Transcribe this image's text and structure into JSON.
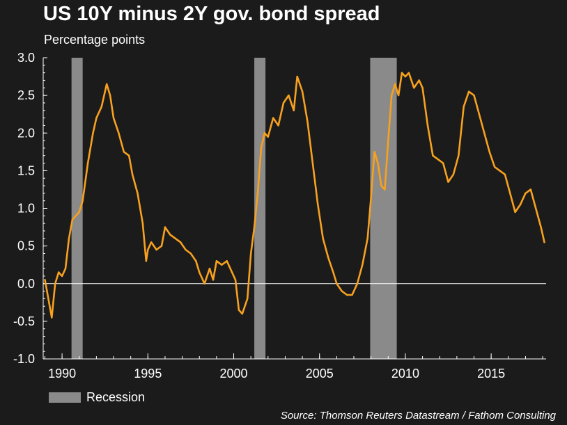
{
  "chart_data": {
    "type": "line",
    "title": "US 10Y minus 2Y gov. bond spread",
    "subtitle": "Percentage points",
    "xlabel": "",
    "ylabel": "Percentage points",
    "xlim": [
      1988.9,
      2018.2
    ],
    "ylim": [
      -1.0,
      3.0
    ],
    "y_ticks": [
      -1.0,
      -0.5,
      0.0,
      0.5,
      1.0,
      1.5,
      2.0,
      2.5,
      3.0
    ],
    "y_tick_labels": [
      "-1.0",
      "-0.5",
      "0.0",
      "0.5",
      "1.0",
      "1.5",
      "2.0",
      "2.5",
      "3.0"
    ],
    "x_ticks": [
      1990,
      1995,
      2000,
      2005,
      2010,
      2015
    ],
    "x_tick_labels": [
      "1990",
      "1995",
      "2000",
      "2005",
      "2010",
      "2015"
    ],
    "colors": {
      "series": "#f7a11f",
      "recession": "#8a8a8a",
      "zero_line": "#ffffff",
      "background": "#1b1b1b"
    },
    "recessions": [
      {
        "start": 1990.55,
        "end": 1991.2
      },
      {
        "start": 2001.2,
        "end": 2001.85
      },
      {
        "start": 2007.95,
        "end": 2009.5
      }
    ],
    "series": [
      {
        "name": "US 10Y minus 2Y spread",
        "x": [
          1989.0,
          1989.2,
          1989.4,
          1989.6,
          1989.8,
          1990.0,
          1990.2,
          1990.4,
          1990.6,
          1990.8,
          1991.0,
          1991.2,
          1991.5,
          1991.8,
          1992.0,
          1992.3,
          1992.6,
          1992.8,
          1993.0,
          1993.3,
          1993.6,
          1993.9,
          1994.1,
          1994.4,
          1994.7,
          1994.9,
          1995.0,
          1995.2,
          1995.5,
          1995.8,
          1996.0,
          1996.3,
          1996.6,
          1996.9,
          1997.2,
          1997.5,
          1997.8,
          1998.0,
          1998.3,
          1998.6,
          1998.8,
          1999.0,
          1999.3,
          1999.6,
          1999.9,
          2000.1,
          2000.3,
          2000.5,
          2000.8,
          2001.0,
          2001.2,
          2001.4,
          2001.6,
          2001.8,
          2002.0,
          2002.3,
          2002.6,
          2002.9,
          2003.2,
          2003.5,
          2003.7,
          2004.0,
          2004.3,
          2004.6,
          2004.9,
          2005.2,
          2005.5,
          2005.8,
          2006.0,
          2006.3,
          2006.6,
          2006.9,
          2007.2,
          2007.5,
          2007.8,
          2008.0,
          2008.2,
          2008.4,
          2008.6,
          2008.8,
          2009.0,
          2009.2,
          2009.4,
          2009.6,
          2009.8,
          2010.0,
          2010.2,
          2010.5,
          2010.8,
          2011.0,
          2011.3,
          2011.6,
          2011.9,
          2012.2,
          2012.5,
          2012.8,
          2013.1,
          2013.4,
          2013.7,
          2014.0,
          2014.3,
          2014.6,
          2014.9,
          2015.2,
          2015.5,
          2015.8,
          2016.1,
          2016.4,
          2016.7,
          2017.0,
          2017.3,
          2017.6,
          2017.9,
          2018.1
        ],
        "values": [
          0.05,
          -0.2,
          -0.45,
          0.0,
          0.15,
          0.1,
          0.2,
          0.6,
          0.85,
          0.9,
          0.95,
          1.1,
          1.6,
          2.0,
          2.2,
          2.35,
          2.65,
          2.5,
          2.2,
          2.0,
          1.75,
          1.7,
          1.45,
          1.2,
          0.8,
          0.3,
          0.45,
          0.55,
          0.45,
          0.5,
          0.75,
          0.65,
          0.6,
          0.55,
          0.45,
          0.4,
          0.3,
          0.15,
          0.0,
          0.2,
          0.05,
          0.3,
          0.25,
          0.3,
          0.15,
          0.05,
          -0.35,
          -0.4,
          -0.2,
          0.4,
          0.75,
          1.2,
          1.8,
          2.0,
          1.95,
          2.2,
          2.1,
          2.4,
          2.5,
          2.3,
          2.75,
          2.55,
          2.15,
          1.6,
          1.05,
          0.6,
          0.35,
          0.15,
          0.0,
          -0.1,
          -0.15,
          -0.15,
          0.0,
          0.25,
          0.6,
          1.15,
          1.75,
          1.6,
          1.3,
          1.25,
          1.9,
          2.5,
          2.65,
          2.5,
          2.8,
          2.75,
          2.8,
          2.6,
          2.7,
          2.6,
          2.1,
          1.7,
          1.65,
          1.6,
          1.35,
          1.45,
          1.7,
          2.35,
          2.55,
          2.5,
          2.25,
          2.0,
          1.75,
          1.55,
          1.5,
          1.45,
          1.2,
          0.95,
          1.05,
          1.2,
          1.25,
          1.0,
          0.75,
          0.55
        ]
      }
    ],
    "legend_label": "Recession",
    "source": "Source: Thomson Reuters Datastream / Fathom Consulting"
  }
}
